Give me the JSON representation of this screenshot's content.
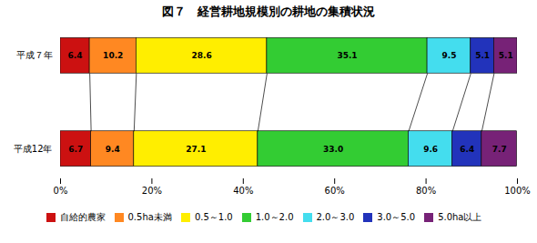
{
  "chart_data": {
    "type": "bar",
    "title": "図７　経営耕地規模別の耕地の集積状況",
    "orientation": "horizontal",
    "stacked": true,
    "data_labels": true,
    "legend": "bottom",
    "categories": [
      "平成７年",
      "平成12年"
    ],
    "series": [
      {
        "name": "自給的農家",
        "color": "#cc1111",
        "values": [
          6.4,
          6.7
        ],
        "value_labels": [
          "6.4",
          "6.7"
        ]
      },
      {
        "name": "0.5ha未満",
        "color": "#ff8822",
        "values": [
          10.2,
          9.4
        ],
        "value_labels": [
          "10.2",
          "9.4"
        ]
      },
      {
        "name": "0.5～1.0",
        "color": "#ffee00",
        "values": [
          28.6,
          27.1
        ],
        "value_labels": [
          "28.6",
          "27.1"
        ]
      },
      {
        "name": "1.0～2.0",
        "color": "#33cc33",
        "values": [
          35.1,
          33.0
        ],
        "value_labels": [
          "35.1",
          "33.0"
        ]
      },
      {
        "name": "2.0～3.0",
        "color": "#44ddee",
        "values": [
          9.5,
          9.6
        ],
        "value_labels": [
          "9.5",
          "9.6"
        ]
      },
      {
        "name": "3.0～5.0",
        "color": "#2233bb",
        "values": [
          5.1,
          6.4
        ],
        "value_labels": [
          "5.1",
          "6.4"
        ]
      },
      {
        "name": "5.0ha以上",
        "color": "#772277",
        "values": [
          5.1,
          7.7
        ],
        "value_labels": [
          "5.1",
          "7.7"
        ]
      }
    ],
    "xlim": [
      0,
      100
    ],
    "xticks": [
      {
        "value": 0,
        "label": "0%"
      },
      {
        "value": 20,
        "label": "20%"
      },
      {
        "value": 40,
        "label": "40%"
      },
      {
        "value": 60,
        "label": "60%"
      },
      {
        "value": 80,
        "label": "80%"
      },
      {
        "value": 100,
        "label": "100%"
      }
    ]
  }
}
